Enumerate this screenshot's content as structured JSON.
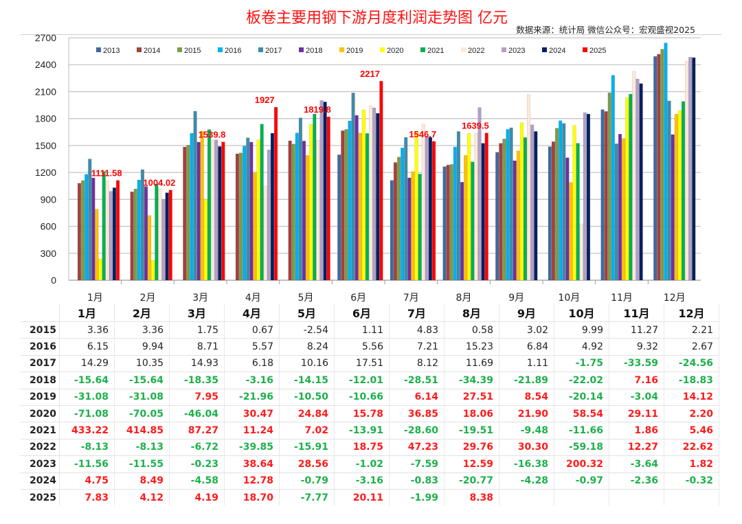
{
  "header": {
    "title": "板卷主要用钢下游月度利润走势图  亿元",
    "source": "数据来源：统计局  微信公众号：宏观盛视2025"
  },
  "chart_data": {
    "type": "bar",
    "title": "板卷主要用钢下游月度利润走势图  亿元",
    "xlabel": "",
    "ylabel": "亿元",
    "ylim": [
      0,
      2700
    ],
    "yticks": [
      0,
      300,
      600,
      900,
      1200,
      1500,
      1800,
      2100,
      2400,
      2700
    ],
    "grid": true,
    "legend_position": "top",
    "categories": [
      "1月",
      "2月",
      "3月",
      "4月",
      "5月",
      "6月",
      "7月",
      "8月",
      "9月",
      "10月",
      "11月",
      "12月"
    ],
    "series": [
      {
        "name": "2013",
        "color": "#3f6aa0",
        "values": [
          null,
          null,
          null,
          null,
          null,
          1397,
          1112,
          1265,
          1425,
          1487,
          1900,
          2492
        ]
      },
      {
        "name": "2014",
        "color": "#a2413e",
        "values": [
          1080,
          985,
          1484,
          1408,
          1553,
          1665,
          1311,
          1283,
          1525,
          1543,
          1880,
          2517
        ]
      },
      {
        "name": "2015",
        "color": "#7f9a48",
        "values": [
          1110,
          1017,
          1505,
          1418,
          1517,
          1680,
          1372,
          1290,
          1574,
          1693,
          2088,
          2573
        ]
      },
      {
        "name": "2016",
        "color": "#00b0f0",
        "values": [
          1180,
          1117,
          1637,
          1494,
          1640,
          1775,
          1474,
          1484,
          1680,
          1777,
          2282,
          2642
        ]
      },
      {
        "name": "2017",
        "color": "#3f8ca8",
        "values": [
          1350,
          1232,
          1882,
          1586,
          1808,
          2086,
          1591,
          1657,
          1698,
          1747,
          1520,
          1997
        ]
      },
      {
        "name": "2018",
        "color": "#7030a0",
        "values": [
          1140,
          1043,
          1538,
          1538,
          1550,
          1836,
          1140,
          1092,
          1331,
          1364,
          1627,
          1622
        ]
      },
      {
        "name": "2019",
        "color": "#ffc000",
        "values": [
          790,
          721,
          1660,
          1201,
          1390,
          1640,
          1209,
          1390,
          1441,
          1089,
          1578,
          1849
        ]
      },
      {
        "name": "2020",
        "color": "#ffff00",
        "values": [
          237,
          222,
          900,
          1563,
          1734,
          1897,
          1650,
          1637,
          1754,
          1724,
          2035,
          1890
        ]
      },
      {
        "name": "2021",
        "color": "#00b050",
        "values": [
          1210,
          1071,
          1678,
          1739,
          1851,
          1635,
          1183,
          1318,
          1589,
          1525,
          2073,
          1991
        ]
      },
      {
        "name": "2022",
        "color": "#fde9d9",
        "values": [
          1110,
          1017,
          1563,
          1048,
          1558,
          1941,
          1737,
          1640,
          2068,
          627,
          2326,
          2440
        ]
      },
      {
        "name": "2023",
        "color": "#b1a0c7",
        "values": [
          990,
          900,
          1563,
          1453,
          2002,
          1920,
          1604,
          1923,
          1731,
          1867,
          2241,
          2484
        ]
      },
      {
        "name": "2024",
        "color": "#002060",
        "values": [
          1030,
          974,
          1489,
          1637,
          1986,
          1859,
          1591,
          1525,
          1657,
          1851,
          2190,
          2479
        ]
      },
      {
        "name": "2025",
        "color": "#ff0000",
        "values": [
          1111.58,
          1004.02,
          1539.8,
          1927,
          1819.8,
          2217,
          1546.7,
          1639.5,
          null,
          null,
          null,
          null
        ]
      }
    ],
    "data_labels": {
      "series": "2025",
      "labels": [
        "1111.58",
        "1004.02",
        "1539.8",
        "1927",
        "1819.8",
        "2217",
        "1546.7",
        "1639.5"
      ]
    }
  },
  "table": {
    "columns": [
      "1月",
      "2月",
      "3月",
      "4月",
      "5月",
      "6月",
      "7月",
      "8月",
      "9月",
      "10月",
      "11月",
      "12月"
    ],
    "rows": [
      {
        "year": "2015",
        "values": [
          "3.36",
          "3.36",
          "1.75",
          "0.67",
          "-2.54",
          "1.11",
          "4.83",
          "0.58",
          "3.02",
          "9.99",
          "11.27",
          "2.21"
        ]
      },
      {
        "year": "2016",
        "values": [
          "6.15",
          "9.94",
          "8.71",
          "5.57",
          "8.24",
          "5.56",
          "7.21",
          "15.23",
          "6.84",
          "4.92",
          "9.32",
          "2.67"
        ]
      },
      {
        "year": "2017",
        "values": [
          "14.29",
          "10.35",
          "14.93",
          "6.18",
          "10.16",
          "17.51",
          "8.12",
          "11.69",
          "1.11",
          "-1.75",
          "-33.59",
          "-24.56"
        ]
      },
      {
        "year": "2018",
        "values": [
          "-15.64",
          "-15.64",
          "-18.35",
          "-3.16",
          "-14.15",
          "-12.01",
          "-28.51",
          "-34.39",
          "-21.89",
          "-22.02",
          "7.16",
          "-18.83"
        ]
      },
      {
        "year": "2019",
        "values": [
          "-31.08",
          "-31.08",
          "7.95",
          "-21.96",
          "-10.50",
          "-10.66",
          "6.14",
          "27.51",
          "8.54",
          "-20.14",
          "-3.04",
          "14.12"
        ]
      },
      {
        "year": "2020",
        "values": [
          "-71.08",
          "-70.05",
          "-46.04",
          "30.47",
          "24.84",
          "15.78",
          "36.85",
          "18.06",
          "21.90",
          "58.54",
          "29.11",
          "2.20"
        ]
      },
      {
        "year": "2021",
        "values": [
          "433.22",
          "414.85",
          "87.27",
          "11.24",
          "7.02",
          "-13.91",
          "-28.60",
          "-19.51",
          "-9.48",
          "-11.66",
          "1.86",
          "5.46"
        ]
      },
      {
        "year": "2022",
        "values": [
          "-8.13",
          "-8.13",
          "-6.72",
          "-39.85",
          "-15.91",
          "18.75",
          "47.23",
          "29.76",
          "30.30",
          "-59.18",
          "12.27",
          "22.62"
        ]
      },
      {
        "year": "2023",
        "values": [
          "-11.56",
          "-11.55",
          "-0.23",
          "38.64",
          "28.56",
          "-1.02",
          "-7.59",
          "12.59",
          "-16.38",
          "200.32",
          "-3.64",
          "1.82"
        ]
      },
      {
        "year": "2024",
        "values": [
          "4.75",
          "8.49",
          "-4.58",
          "12.78",
          "-0.79",
          "-3.16",
          "-0.83",
          "-20.77",
          "-4.28",
          "-0.97",
          "-2.36",
          "-0.32"
        ]
      },
      {
        "year": "2025",
        "values": [
          "7.83",
          "4.12",
          "4.19",
          "18.70",
          "-7.77",
          "20.11",
          "-1.99",
          "8.38",
          "",
          "",
          "",
          ""
        ]
      }
    ]
  }
}
